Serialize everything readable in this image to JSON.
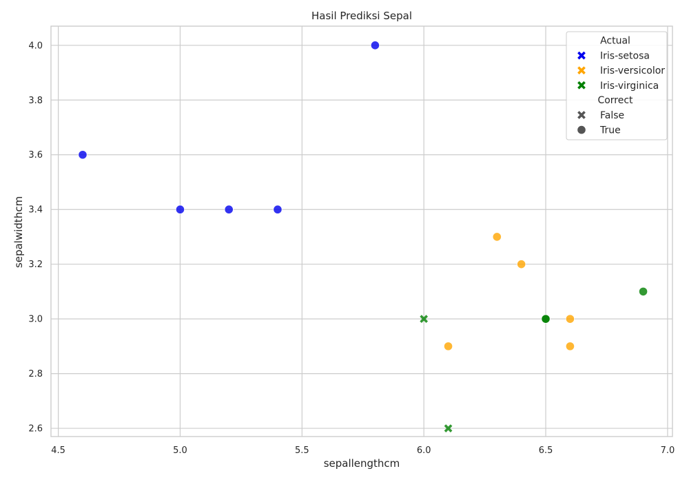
{
  "chart_data": {
    "type": "scatter",
    "title": "Hasil Prediksi Sepal",
    "xlabel": "sepallengthcm",
    "ylabel": "sepalwidthcm",
    "xlim": [
      4.47,
      7.02
    ],
    "ylim": [
      2.57,
      4.07
    ],
    "xticks": [
      4.5,
      5.0,
      5.5,
      6.0,
      6.5,
      7.0
    ],
    "xtick_labels": [
      "4.5",
      "5.0",
      "5.5",
      "6.0",
      "6.5",
      "7.0"
    ],
    "yticks": [
      2.6,
      2.8,
      3.0,
      3.2,
      3.4,
      3.6,
      3.8,
      4.0
    ],
    "ytick_labels": [
      "2.6",
      "2.8",
      "3.0",
      "3.2",
      "3.4",
      "3.6",
      "3.8",
      "4.0"
    ],
    "grid": true,
    "legend_position": "top-right",
    "colors": {
      "Iris-setosa": "#0000ee",
      "Iris-versicolor": "#ffa500",
      "Iris-virginica": "#008000",
      "legend_marker_neutral": "#555555",
      "grid": "#cccccc"
    },
    "series": [
      {
        "name": "Iris-setosa",
        "color": "#0000ee",
        "points": [
          {
            "x": 4.6,
            "y": 3.6,
            "correct": true
          },
          {
            "x": 5.0,
            "y": 3.4,
            "correct": true
          },
          {
            "x": 5.2,
            "y": 3.4,
            "correct": true
          },
          {
            "x": 5.4,
            "y": 3.4,
            "correct": true
          },
          {
            "x": 5.8,
            "y": 4.0,
            "correct": true
          }
        ]
      },
      {
        "name": "Iris-versicolor",
        "color": "#ffa500",
        "points": [
          {
            "x": 6.1,
            "y": 2.9,
            "correct": true
          },
          {
            "x": 6.3,
            "y": 3.3,
            "correct": true
          },
          {
            "x": 6.4,
            "y": 3.2,
            "correct": true
          },
          {
            "x": 6.6,
            "y": 3.0,
            "correct": true
          },
          {
            "x": 6.6,
            "y": 2.9,
            "correct": true
          }
        ]
      },
      {
        "name": "Iris-virginica",
        "color": "#008000",
        "points": [
          {
            "x": 6.0,
            "y": 3.0,
            "correct": false
          },
          {
            "x": 6.1,
            "y": 2.6,
            "correct": false
          },
          {
            "x": 6.5,
            "y": 3.0,
            "correct": true
          },
          {
            "x": 6.5,
            "y": 3.0,
            "correct": true
          },
          {
            "x": 6.9,
            "y": 3.1,
            "correct": true
          }
        ]
      }
    ],
    "legend": {
      "hue_title": "Actual",
      "hue_entries": [
        "Iris-setosa",
        "Iris-versicolor",
        "Iris-virginica"
      ],
      "style_title": "Correct",
      "style_entries": [
        {
          "label": "False",
          "marker": "x-icon"
        },
        {
          "label": "True",
          "marker": "circle-icon"
        }
      ]
    }
  }
}
